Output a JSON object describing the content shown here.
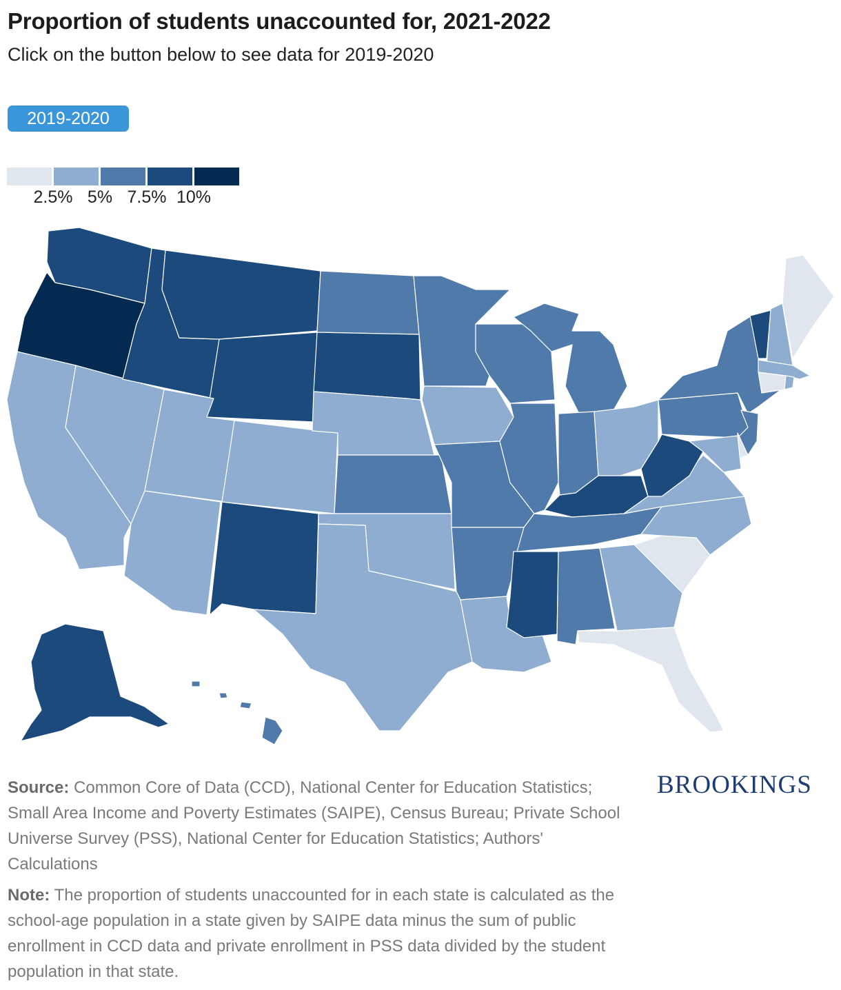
{
  "header": {
    "title": "Proportion of students unaccounted for, 2021-2022",
    "subtitle": "Click on the button below to see data for 2019-2020"
  },
  "toggle": {
    "label": "2019-2020"
  },
  "legend": {
    "labels": [
      "2.5%",
      "5%",
      "7.5%",
      "10%"
    ],
    "colors": [
      "#dfe6ee",
      "#8eadd0",
      "#4f7aa9",
      "#1c4a7c",
      "#052a52"
    ]
  },
  "footer": {
    "source_label": "Source:",
    "source_text": " Common Core of Data (CCD), National Center for Education Statistics; Small Area Income and Poverty Estimates (SAIPE), Census Bureau; Private School Universe Survey (PSS), National Center for Education Statistics; Authors' Calculations",
    "note_label": "Note:",
    "note_text": " The proportion of students unaccounted for in each state is calculated as the school-age population in a state given by SAIPE data minus the sum of public enrollment in CCD data and private enrollment in PSS data divided by the student population in that state.",
    "logo": "BROOKINGS"
  },
  "map_data": {
    "type": "choropleth",
    "bins": [
      "under 2.5%",
      "2.5%-5%",
      "5%-7.5%",
      "7.5%-10%",
      "10% and over"
    ],
    "states": {
      "WA": 3,
      "OR": 4,
      "CA": 1,
      "NV": 1,
      "ID": 3,
      "MT": 3,
      "WY": 3,
      "UT": 1,
      "AZ": 1,
      "CO": 1,
      "NM": 3,
      "ND": 2,
      "SD": 3,
      "NE": 1,
      "KS": 2,
      "OK": 1,
      "TX": 1,
      "MN": 2,
      "IA": 1,
      "MO": 2,
      "AR": 2,
      "LA": 1,
      "WI": 2,
      "IL": 2,
      "MI": 2,
      "IN": 2,
      "OH": 1,
      "KY": 3,
      "TN": 2,
      "MS": 3,
      "AL": 2,
      "GA": 1,
      "FL": 0,
      "SC": 0,
      "NC": 1,
      "VA": 1,
      "WV": 3,
      "PA": 2,
      "NY": 2,
      "NJ": 2,
      "DE": 0,
      "MD": 1,
      "VT": 3,
      "NH": 1,
      "ME": 0,
      "MA": 1,
      "RI": 1,
      "CT": 0,
      "AK": 3,
      "HI": 2
    }
  }
}
